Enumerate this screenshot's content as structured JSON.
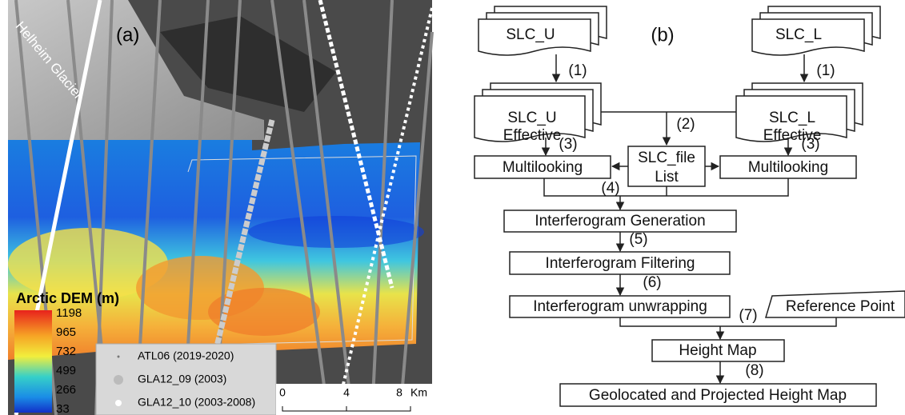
{
  "map": {
    "panel_label": "(a)",
    "glacier_label": "Helheim Glacier",
    "colorbar": {
      "title": "Arctic DEM (m)",
      "ticks": [
        1198,
        965,
        732,
        499,
        266,
        33
      ]
    },
    "legend": [
      "ATL06 (2019-2020)",
      "GLA12_09 (2003)",
      "GLA12_10 (2003-2008)"
    ],
    "scale_bar": {
      "ticks": [
        0,
        4,
        8
      ],
      "unit": "Km"
    }
  },
  "flowchart": {
    "panel_label": "(b)",
    "nodes": [
      "SLC_U",
      "SLC_L",
      "SLC_U",
      "Effective",
      "SLC_L",
      "Effective",
      "SLC_file",
      "List",
      "Multilooking",
      "Multilooking",
      "Interferogram Generation",
      "Interferogram Filtering",
      "Interferogram unwrapping",
      "Reference Point",
      "Height Map",
      "Geolocated and Projected Height Map"
    ],
    "steps": [
      "(1)",
      "(1)",
      "(2)",
      "(3)",
      "(3)",
      "(4)",
      "(5)",
      "(6)",
      "(7)",
      "(8)"
    ]
  }
}
